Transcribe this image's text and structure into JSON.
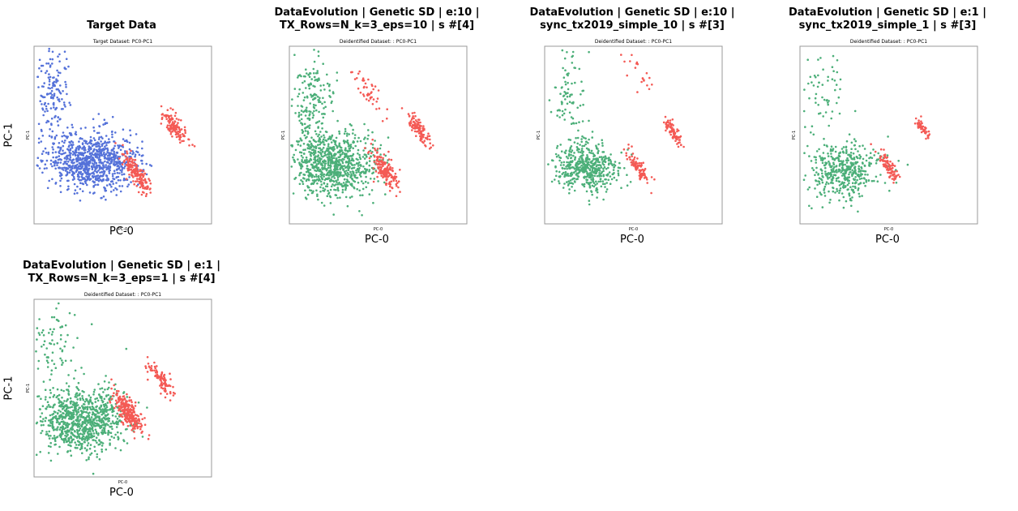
{
  "colors": {
    "real": "#5572d9",
    "synthetic": "#4caf79",
    "overlay": "#f45a55",
    "frame": "#999999"
  },
  "chart_data": [
    {
      "type": "scatter",
      "title": "Target Data",
      "subtitle": "Target Dataset: PC0-PC1",
      "xlabel": "PC-0",
      "ylabel": "PC-1",
      "inner_xlabel": "PC-0",
      "inner_ylabel": "PC-1",
      "series": [
        {
          "color_key": "real",
          "clusters": [
            {
              "cx": 0.33,
              "cy": 0.65,
              "sx": 0.13,
              "sy": 0.08,
              "n": 900
            },
            {
              "cx": 0.11,
              "cy": 0.25,
              "sx": 0.05,
              "sy": 0.12,
              "n": 150
            }
          ]
        },
        {
          "color_key": "overlay",
          "clusters": [
            {
              "cx": 0.58,
              "cy": 0.72,
              "sx": 0.06,
              "sy": 0.08,
              "n": 170
            },
            {
              "cx": 0.79,
              "cy": 0.45,
              "sx": 0.06,
              "sy": 0.07,
              "n": 130
            }
          ]
        }
      ]
    },
    {
      "type": "scatter",
      "title": "DataEvolution | Genetic SD | e:10 |\nTX_Rows=N_k=3_eps=10 | s #[4]",
      "subtitle": "Deidentified Dataset: : PC0-PC1",
      "xlabel": "PC-0",
      "ylabel": "",
      "inner_xlabel": "PC-0",
      "inner_ylabel": "PC-1",
      "series": [
        {
          "color_key": "synthetic",
          "clusters": [
            {
              "cx": 0.25,
              "cy": 0.66,
              "sx": 0.12,
              "sy": 0.09,
              "n": 850
            },
            {
              "cx": 0.12,
              "cy": 0.28,
              "sx": 0.06,
              "sy": 0.13,
              "n": 180
            }
          ]
        },
        {
          "color_key": "overlay",
          "clusters": [
            {
              "cx": 0.54,
              "cy": 0.7,
              "sx": 0.07,
              "sy": 0.08,
              "n": 180
            },
            {
              "cx": 0.73,
              "cy": 0.47,
              "sx": 0.05,
              "sy": 0.07,
              "n": 110
            },
            {
              "cx": 0.45,
              "cy": 0.25,
              "sx": 0.07,
              "sy": 0.1,
              "n": 45
            }
          ]
        }
      ]
    },
    {
      "type": "scatter",
      "title": "DataEvolution | Genetic SD | e:10 |\nsync_tx2019_simple_10 | s #[3]",
      "subtitle": "Deidentified Dataset: : PC0-PC1",
      "xlabel": "PC-0",
      "ylabel": "",
      "inner_xlabel": "PC-0",
      "inner_ylabel": "PC-1",
      "series": [
        {
          "color_key": "synthetic",
          "clusters": [
            {
              "cx": 0.23,
              "cy": 0.68,
              "sx": 0.09,
              "sy": 0.07,
              "n": 500
            },
            {
              "cx": 0.13,
              "cy": 0.3,
              "sx": 0.06,
              "sy": 0.13,
              "n": 90
            }
          ]
        },
        {
          "color_key": "overlay",
          "clusters": [
            {
              "cx": 0.53,
              "cy": 0.69,
              "sx": 0.04,
              "sy": 0.07,
              "n": 100
            },
            {
              "cx": 0.72,
              "cy": 0.48,
              "sx": 0.04,
              "sy": 0.06,
              "n": 80
            },
            {
              "cx": 0.53,
              "cy": 0.15,
              "sx": 0.08,
              "sy": 0.1,
              "n": 20
            }
          ]
        }
      ]
    },
    {
      "type": "scatter",
      "title": "DataEvolution | Genetic SD | e:1 |\nsync_tx2019_simple_1 | s #[3]",
      "subtitle": "Deidentified Dataset: : PC0-PC1",
      "xlabel": "PC-0",
      "ylabel": "",
      "inner_xlabel": "PC-0",
      "inner_ylabel": "PC-1",
      "series": [
        {
          "color_key": "synthetic",
          "clusters": [
            {
              "cx": 0.25,
              "cy": 0.7,
              "sx": 0.1,
              "sy": 0.08,
              "n": 450
            },
            {
              "cx": 0.13,
              "cy": 0.25,
              "sx": 0.06,
              "sy": 0.12,
              "n": 60
            }
          ]
        },
        {
          "color_key": "overlay",
          "clusters": [
            {
              "cx": 0.5,
              "cy": 0.68,
              "sx": 0.04,
              "sy": 0.06,
              "n": 90
            },
            {
              "cx": 0.69,
              "cy": 0.46,
              "sx": 0.03,
              "sy": 0.04,
              "n": 50
            }
          ]
        }
      ]
    },
    {
      "type": "scatter",
      "title": "DataEvolution | Genetic SD | e:1 |\nTX_Rows=N_k=3_eps=1 | s #[4]",
      "subtitle": "Deidentified Dataset: : PC0-PC1",
      "xlabel": "PC-0",
      "ylabel": "PC-1",
      "inner_xlabel": "PC-0",
      "inner_ylabel": "PC-1",
      "series": [
        {
          "color_key": "synthetic",
          "clusters": [
            {
              "cx": 0.27,
              "cy": 0.68,
              "sx": 0.13,
              "sy": 0.09,
              "n": 900
            },
            {
              "cx": 0.12,
              "cy": 0.28,
              "sx": 0.07,
              "sy": 0.12,
              "n": 80
            }
          ]
        },
        {
          "color_key": "overlay",
          "clusters": [
            {
              "cx": 0.53,
              "cy": 0.64,
              "sx": 0.07,
              "sy": 0.08,
              "n": 260
            },
            {
              "cx": 0.72,
              "cy": 0.45,
              "sx": 0.05,
              "sy": 0.07,
              "n": 100
            }
          ]
        }
      ]
    }
  ]
}
